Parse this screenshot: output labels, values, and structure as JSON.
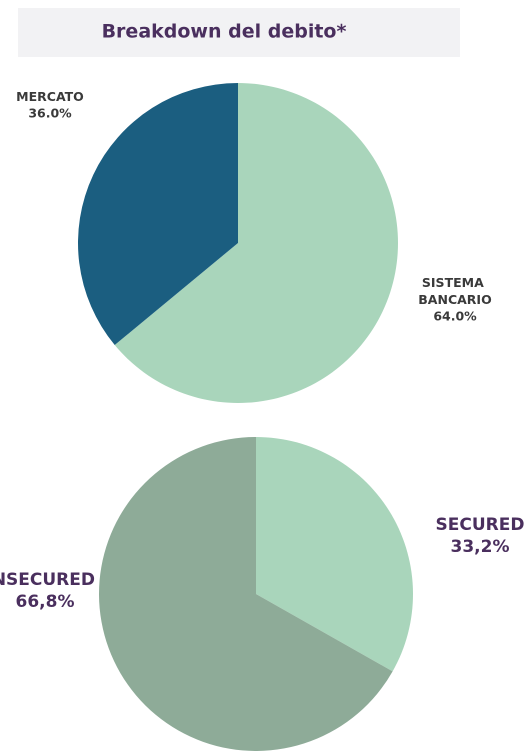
{
  "chart_data": [
    {
      "type": "pie",
      "title": "Breakdown del debito*",
      "categories": [
        "SISTEMA BANCARIO",
        "MERCATO"
      ],
      "values": [
        64.0,
        36.0
      ],
      "value_labels": [
        "64.0%",
        "36.0%"
      ],
      "colors": [
        "#a9d5bb",
        "#1b5e80"
      ]
    },
    {
      "type": "pie",
      "categories": [
        "SECURED",
        "UNSECURED"
      ],
      "values": [
        33.2,
        66.8
      ],
      "value_labels": [
        "33,2%",
        "66,8%"
      ],
      "colors": [
        "#a9d5bb",
        "#8eab98"
      ]
    }
  ]
}
